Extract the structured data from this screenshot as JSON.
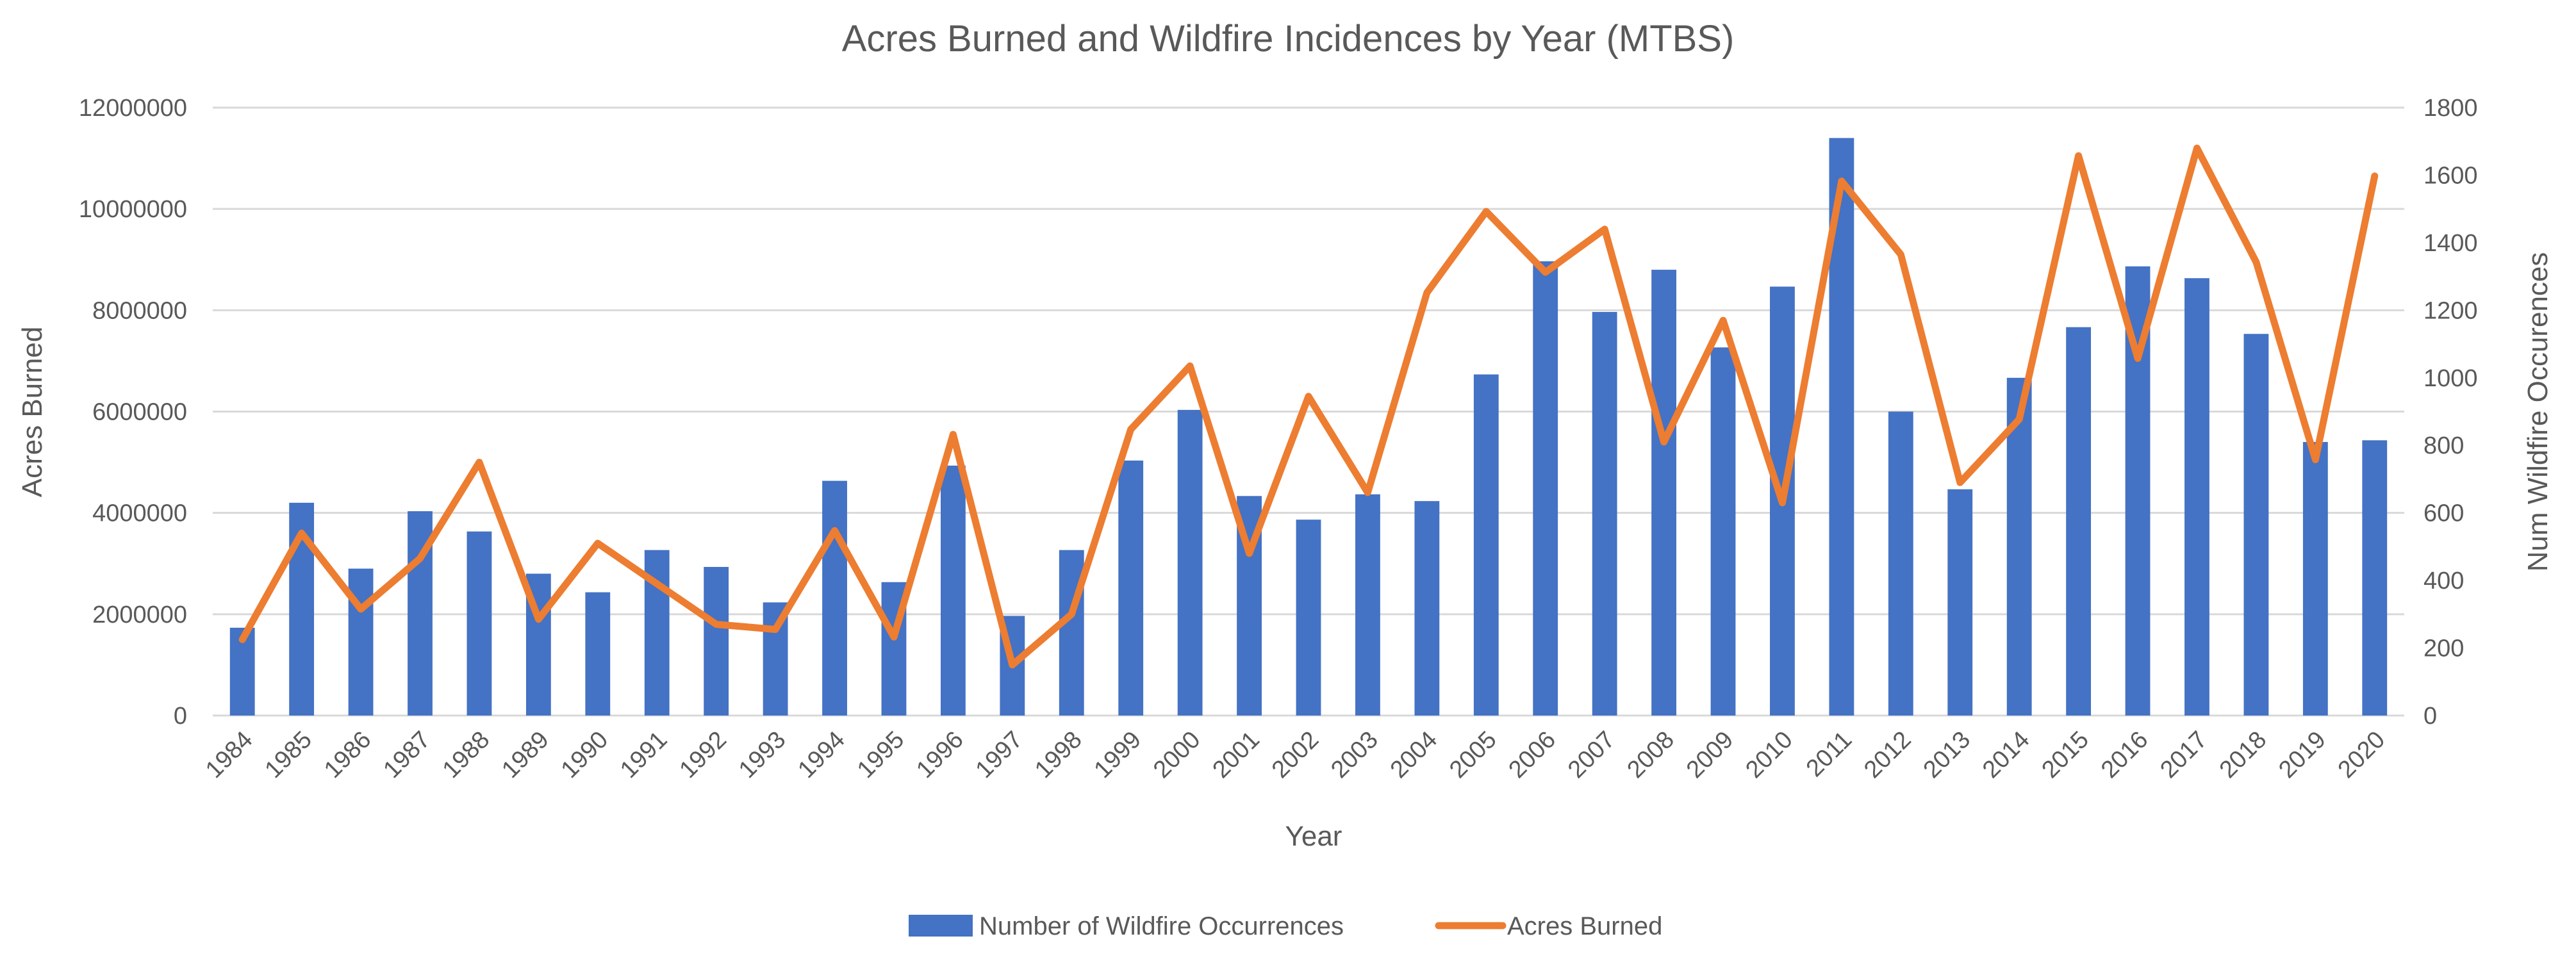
{
  "chart_data": {
    "type": "bar+line",
    "title": "Acres Burned and Wildfire Incidences by Year (MTBS)",
    "xlabel": "Year",
    "ylabel_left": "Acres Burned",
    "ylabel_right": "Num Wildfire Occurences",
    "ylim_left": [
      0,
      12000000
    ],
    "ylim_right": [
      0,
      1800
    ],
    "yticks_left": [
      "0",
      "2000000",
      "4000000",
      "6000000",
      "8000000",
      "10000000",
      "12000000"
    ],
    "yticks_right": [
      "0",
      "200",
      "400",
      "600",
      "800",
      "1000",
      "1200",
      "1400",
      "1600",
      "1800"
    ],
    "grid": true,
    "legend_position": "bottom",
    "categories": [
      "1984",
      "1985",
      "1986",
      "1987",
      "1988",
      "1989",
      "1990",
      "1991",
      "1992",
      "1993",
      "1994",
      "1995",
      "1996",
      "1997",
      "1998",
      "1999",
      "2000",
      "2001",
      "2002",
      "2003",
      "2004",
      "2005",
      "2006",
      "2007",
      "2008",
      "2009",
      "2010",
      "2011",
      "2012",
      "2013",
      "2014",
      "2015",
      "2016",
      "2017",
      "2018",
      "2019",
      "2020"
    ],
    "series": [
      {
        "name": "Number of Wildfire Occurrences",
        "type": "bar",
        "axis": "right",
        "color": "#4472c4",
        "values": [
          260,
          630,
          435,
          605,
          545,
          420,
          365,
          490,
          440,
          335,
          695,
          395,
          740,
          295,
          490,
          755,
          905,
          650,
          580,
          655,
          635,
          1010,
          1345,
          1195,
          1320,
          1090,
          1270,
          1710,
          900,
          670,
          1000,
          1150,
          1330,
          1295,
          1130,
          810,
          815
        ]
      },
      {
        "name": "Acres Burned",
        "type": "line",
        "axis": "left",
        "color": "#ed7d31",
        "values": [
          1500000,
          3600000,
          2100000,
          3100000,
          5000000,
          1900000,
          3400000,
          2600000,
          1800000,
          1700000,
          3650000,
          1550000,
          5550000,
          1000000,
          2000000,
          5650000,
          6900000,
          3200000,
          6300000,
          4400000,
          8350000,
          9950000,
          8750000,
          9600000,
          5400000,
          7800000,
          4200000,
          10550000,
          9100000,
          4600000,
          5850000,
          11050000,
          7050000,
          11200000,
          8950000,
          5050000,
          10650000
        ]
      }
    ]
  }
}
